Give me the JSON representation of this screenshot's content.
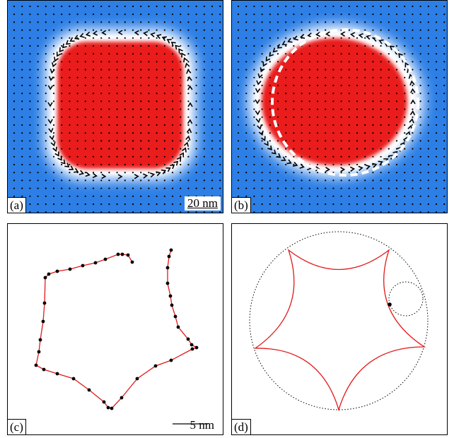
{
  "panels": {
    "a": {
      "label": "(a)",
      "scale_label": "20 nm"
    },
    "b": {
      "label": "(b)"
    },
    "c": {
      "label": "(c)",
      "scale_label": "5 nm"
    },
    "d": {
      "label": "(d)"
    }
  },
  "colors": {
    "background_blue": "#2d7fe6",
    "core_red": "#ee1c1c",
    "wall_white": "#ffffff",
    "curve_red": "#e01b1b",
    "dot_black": "#000000",
    "dashed_white": "#ffffff"
  }
}
